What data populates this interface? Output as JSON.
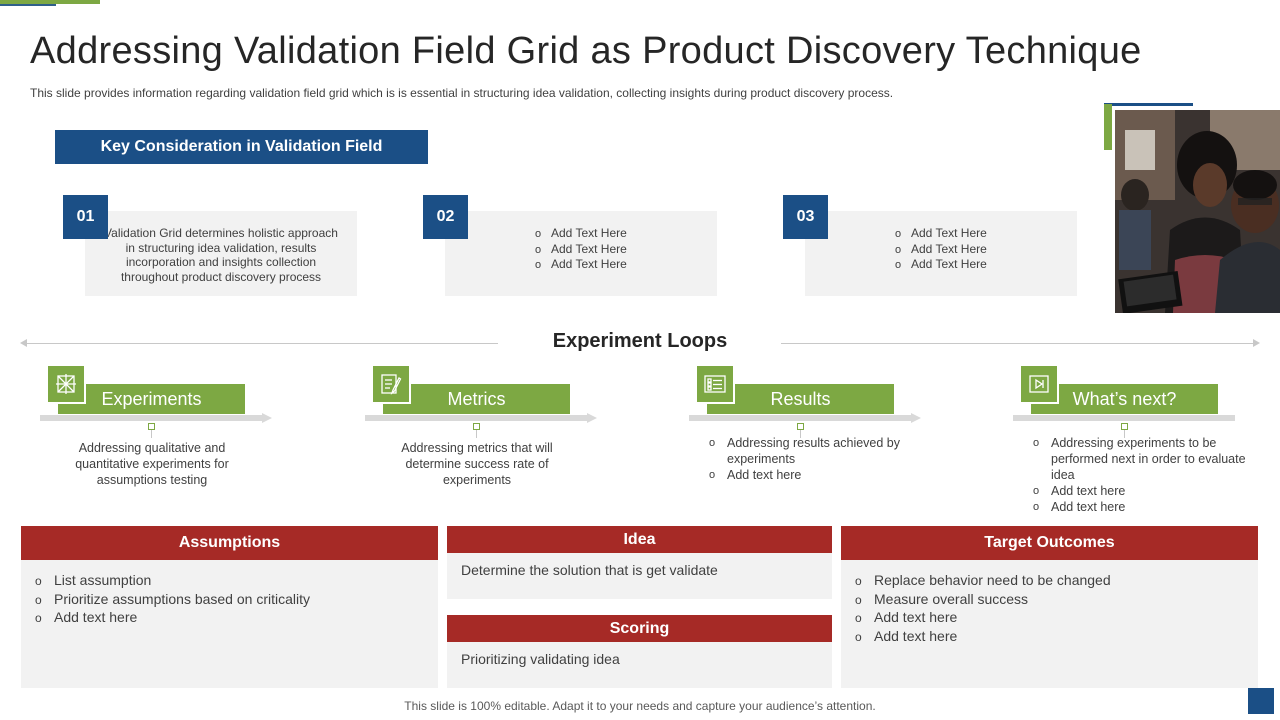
{
  "title": "Addressing Validation Field Grid as Product Discovery Technique",
  "subtitle": "This slide provides information regarding validation field grid which is is essential in structuring idea validation, collecting insights during product discovery process.",
  "key_consideration": {
    "header": "Key Consideration in Validation Field",
    "cards": [
      {
        "number": "01",
        "text": "Validation Grid determines holistic approach in structuring idea validation, results incorporation and insights collection throughout product discovery process"
      },
      {
        "number": "02",
        "items": [
          "Add Text Here",
          "Add Text Here",
          "Add Text Here"
        ]
      },
      {
        "number": "03",
        "items": [
          "Add Text Here",
          "Add Text Here",
          "Add Text Here"
        ]
      }
    ]
  },
  "experiment_loops": {
    "title": "Experiment Loops",
    "loops": [
      {
        "label": "Experiments",
        "icon": "grid-network-icon",
        "text": "Addressing qualitative and quantitative experiments for assumptions testing"
      },
      {
        "label": "Metrics",
        "icon": "checklist-pen-icon",
        "text": "Addressing metrics that will determine success rate of experiments"
      },
      {
        "label": "Results",
        "icon": "list-document-icon",
        "items": [
          "Addressing results achieved by experiments",
          "Add text here"
        ]
      },
      {
        "label": "What’s next?",
        "icon": "play-next-icon",
        "items": [
          "Addressing experiments to be performed next in order to evaluate idea",
          "Add text here",
          "Add text here"
        ]
      }
    ]
  },
  "assumptions": {
    "header": "Assumptions",
    "items": [
      "List assumption",
      "Prioritize assumptions based on criticality",
      "Add text here"
    ]
  },
  "idea": {
    "header": "Idea",
    "text": "Determine the solution that is get validate"
  },
  "scoring": {
    "header": "Scoring",
    "text": "Prioritizing validating idea"
  },
  "target_outcomes": {
    "header": "Target Outcomes",
    "items": [
      "Replace behavior need to be changed",
      "Measure overall success",
      "Add text here",
      "Add text here"
    ]
  },
  "footer": "This slide is 100% editable. Adapt it to your needs and capture your audience’s attention.",
  "colors": {
    "navy": "#1b4f86",
    "green": "#7da843",
    "red": "#a62a26",
    "card_bg": "#f2f2f2"
  }
}
